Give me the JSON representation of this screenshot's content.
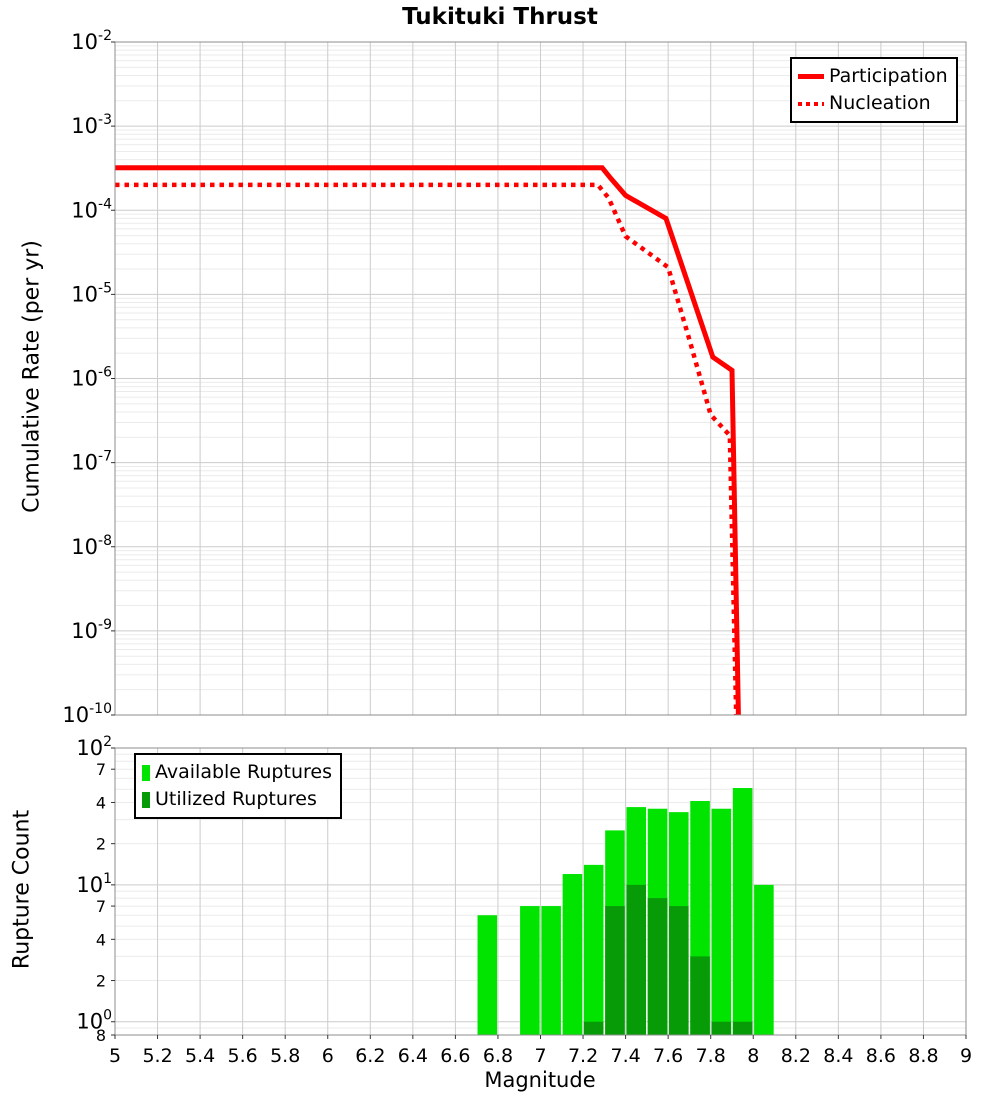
{
  "title": "Tukituki Thrust",
  "colors": {
    "line_red": "#ff0000",
    "available_green": "#00e400",
    "utilized_green": "#089b08",
    "grid_major": "#cccccc",
    "grid_minor": "#ebebeb",
    "panel_border": "#8c8c8c",
    "tick": "#333333"
  },
  "x_axis": {
    "label": "Magnitude",
    "min": 5,
    "max": 9,
    "tick_values": [
      5,
      5.2,
      5.4,
      5.6,
      5.8,
      6,
      6.2,
      6.4,
      6.6,
      6.8,
      7,
      7.2,
      7.4,
      7.6,
      7.8,
      8,
      8.2,
      8.4,
      8.6,
      8.8,
      9
    ],
    "tick_labels": [
      "5",
      "5.2",
      "5.4",
      "5.6",
      "5.8",
      "6",
      "6.2",
      "6.4",
      "6.6",
      "6.8",
      "7",
      "7.2",
      "7.4",
      "7.6",
      "7.8",
      "8",
      "8.2",
      "8.4",
      "8.6",
      "8.8",
      "9"
    ]
  },
  "chart_data": [
    {
      "type": "line",
      "title": "Tukituki Thrust",
      "xlabel": "Magnitude",
      "ylabel": "Cumulative Rate (per yr)",
      "xlim": [
        5,
        9
      ],
      "ylim": [
        1e-10,
        0.01
      ],
      "y_scale": "log",
      "grid": true,
      "legend_position": "top-right",
      "y_tick_exponents": [
        -2,
        -3,
        -4,
        -5,
        -6,
        -7,
        -8,
        -9,
        -10
      ],
      "series": [
        {
          "name": "Participation",
          "style": "solid",
          "color": "#ff0000",
          "points": [
            [
              5.0,
              0.00032
            ],
            [
              7.29,
              0.00032
            ],
            [
              7.33,
              0.00024
            ],
            [
              7.4,
              0.00015
            ],
            [
              7.59,
              8e-05
            ],
            [
              7.81,
              1.8e-06
            ],
            [
              7.9,
              1.25e-06
            ],
            [
              7.93,
              1e-10
            ]
          ]
        },
        {
          "name": "Nucleation",
          "style": "dotted",
          "color": "#ff0000",
          "points": [
            [
              5.0,
              0.0002
            ],
            [
              7.27,
              0.0002
            ],
            [
              7.32,
              0.00014
            ],
            [
              7.4,
              4.9e-05
            ],
            [
              7.6,
              2.1e-05
            ],
            [
              7.7,
              2.9e-06
            ],
            [
              7.8,
              3.7e-07
            ],
            [
              7.89,
              2.1e-07
            ],
            [
              7.92,
              1e-10
            ]
          ]
        }
      ]
    },
    {
      "type": "bar",
      "xlabel": "Magnitude",
      "ylabel": "Rupture Count",
      "xlim": [
        5,
        9
      ],
      "ylim": [
        0.8,
        100
      ],
      "y_scale": "log",
      "grid": true,
      "legend_position": "top-left",
      "bar_width_mag": 0.092,
      "categories": [
        6.75,
        6.95,
        7.05,
        7.15,
        7.25,
        7.35,
        7.45,
        7.55,
        7.65,
        7.75,
        7.85,
        7.95,
        8.05
      ],
      "series": [
        {
          "name": "Available Ruptures",
          "color": "#00e400",
          "values": [
            6,
            7,
            7,
            12,
            14,
            25,
            37,
            36,
            34,
            41,
            36,
            51,
            10
          ]
        },
        {
          "name": "Utilized Ruptures",
          "color": "#089b08",
          "values": [
            0,
            0,
            0,
            0,
            1,
            7,
            10,
            8,
            7,
            3,
            1,
            1,
            0
          ]
        }
      ],
      "y_ticks": [
        {
          "value": 100,
          "base": "10",
          "exp": "2"
        },
        {
          "value": 70,
          "label": "7"
        },
        {
          "value": 40,
          "label": "4"
        },
        {
          "value": 20,
          "label": "2"
        },
        {
          "value": 10,
          "base": "10",
          "exp": "1"
        },
        {
          "value": 7,
          "label": "7"
        },
        {
          "value": 4,
          "label": "4"
        },
        {
          "value": 2,
          "label": "2"
        },
        {
          "value": 1,
          "base": "10",
          "exp": "0"
        },
        {
          "value": 0.8,
          "label": "8"
        }
      ]
    }
  ]
}
